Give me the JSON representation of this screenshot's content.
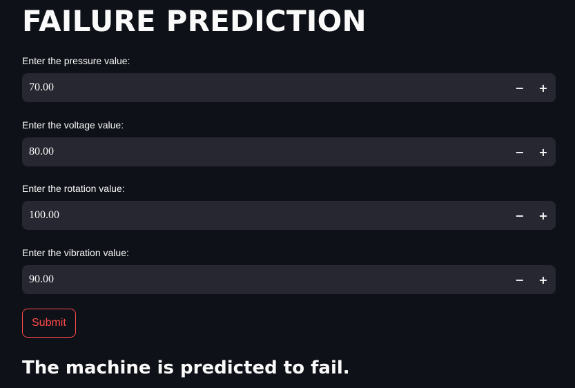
{
  "page": {
    "title": "FAILURE PREDICTION"
  },
  "fields": [
    {
      "label": "Enter the pressure value:",
      "value": "70.00",
      "decrement": "−",
      "increment": "+"
    },
    {
      "label": "Enter the voltage value:",
      "value": "80.00",
      "decrement": "−",
      "increment": "+"
    },
    {
      "label": "Enter the rotation value:",
      "value": "100.00",
      "decrement": "−",
      "increment": "+"
    },
    {
      "label": "Enter the vibration value:",
      "value": "90.00",
      "decrement": "−",
      "increment": "+"
    }
  ],
  "submit": {
    "label": "Submit"
  },
  "result": {
    "text": "The machine is predicted to fail."
  },
  "colors": {
    "background": "#0e1117",
    "input_background": "#262730",
    "accent": "#ff4b4b",
    "text": "#fafafa"
  }
}
